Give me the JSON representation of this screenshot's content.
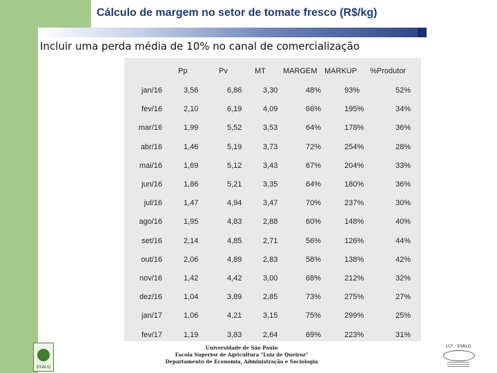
{
  "slide": {
    "title": "Cálculo de margem no setor de tomate fresco (R$/kg)",
    "subtitle": "Incluir uma perda média de 10% no canal de comercialização"
  },
  "table": {
    "headers": {
      "pp": "Pp",
      "pv": "Pv",
      "mt": "MT",
      "margem": "MARGEM",
      "markup": "MARKUP",
      "produtor": "%Produtor"
    },
    "rows": [
      {
        "month": "jan/16",
        "pp": "3,56",
        "pv": "6,86",
        "mt": "3,30",
        "margem": "48%",
        "markup": "93%",
        "produtor": "52%"
      },
      {
        "month": "fev/16",
        "pp": "2,10",
        "pv": "6,19",
        "mt": "4,09",
        "margem": "66%",
        "markup": "195%",
        "produtor": "34%"
      },
      {
        "month": "mar/16",
        "pp": "1,99",
        "pv": "5,52",
        "mt": "3,53",
        "margem": "64%",
        "markup": "178%",
        "produtor": "36%"
      },
      {
        "month": "abr/16",
        "pp": "1,46",
        "pv": "5,19",
        "mt": "3,73",
        "margem": "72%",
        "markup": "254%",
        "produtor": "28%"
      },
      {
        "month": "mai/16",
        "pp": "1,69",
        "pv": "5,12",
        "mt": "3,43",
        "margem": "67%",
        "markup": "204%",
        "produtor": "33%"
      },
      {
        "month": "jun/16",
        "pp": "1,86",
        "pv": "5,21",
        "mt": "3,35",
        "margem": "64%",
        "markup": "180%",
        "produtor": "36%"
      },
      {
        "month": "jul/16",
        "pp": "1,47",
        "pv": "4,94",
        "mt": "3,47",
        "margem": "70%",
        "markup": "237%",
        "produtor": "30%"
      },
      {
        "month": "ago/16",
        "pp": "1,95",
        "pv": "4,83",
        "mt": "2,88",
        "margem": "60%",
        "markup": "148%",
        "produtor": "40%"
      },
      {
        "month": "set/16",
        "pp": "2,14",
        "pv": "4,85",
        "mt": "2,71",
        "margem": "56%",
        "markup": "126%",
        "produtor": "44%"
      },
      {
        "month": "out/16",
        "pp": "2,06",
        "pv": "4,89",
        "mt": "2,83",
        "margem": "58%",
        "markup": "138%",
        "produtor": "42%"
      },
      {
        "month": "nov/16",
        "pp": "1,42",
        "pv": "4,42",
        "mt": "3,00",
        "margem": "68%",
        "markup": "212%",
        "produtor": "32%"
      },
      {
        "month": "dez/16",
        "pp": "1,04",
        "pv": "3,89",
        "mt": "2,85",
        "margem": "73%",
        "markup": "275%",
        "produtor": "27%"
      },
      {
        "month": "jan/17",
        "pp": "1,06",
        "pv": "4,21",
        "mt": "3,15",
        "margem": "75%",
        "markup": "299%",
        "produtor": "25%"
      },
      {
        "month": "fev/17",
        "pp": "1,19",
        "pv": "3,83",
        "mt": "2,64",
        "margem": "69%",
        "markup": "223%",
        "produtor": "31%"
      }
    ]
  },
  "footer": {
    "line1": "Universidade de São Paulo",
    "line2": "Escola Superior de Agricultura \"Luiz de Queiroz\"",
    "line3": "Departamento de Economia, Administração e Sociologia"
  },
  "logos": {
    "left_icon": "esalq-seal-icon",
    "right_icon": "lcf-esalq-logo-icon",
    "left_text": "ESALQ",
    "right_text": "LCF · ESALQ"
  },
  "colors": {
    "title": "#1f3a73",
    "green_band": "#a6c98e",
    "table_background": "#e9e9e9"
  }
}
